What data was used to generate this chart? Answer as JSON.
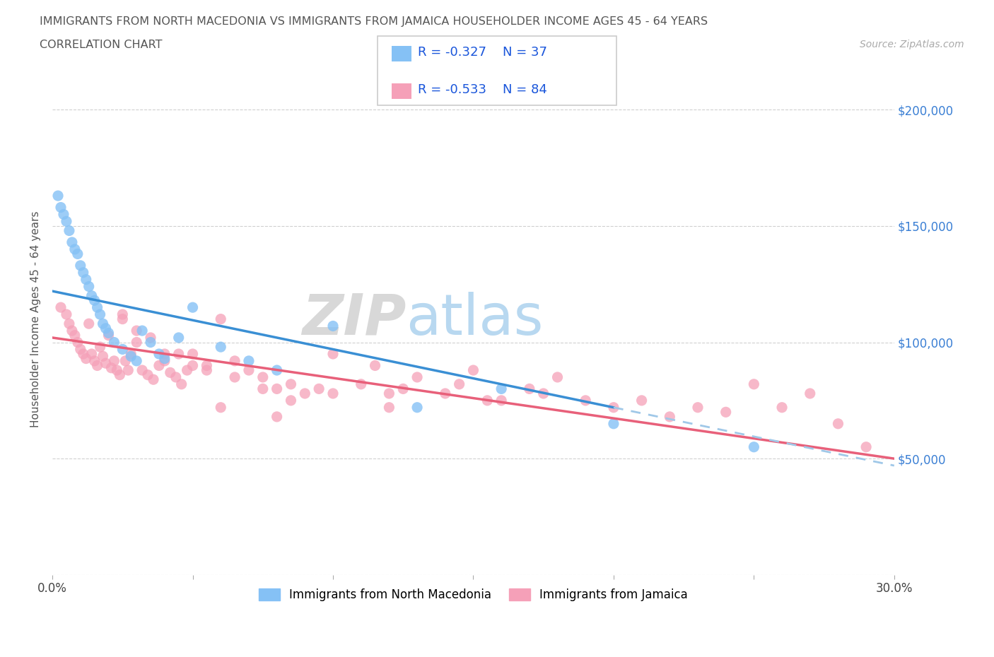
{
  "title_line1": "IMMIGRANTS FROM NORTH MACEDONIA VS IMMIGRANTS FROM JAMAICA HOUSEHOLDER INCOME AGES 45 - 64 YEARS",
  "title_line2": "CORRELATION CHART",
  "source_text": "Source: ZipAtlas.com",
  "watermark_zip": "ZIP",
  "watermark_atlas": "atlas",
  "ylabel": "Householder Income Ages 45 - 64 years",
  "xlim": [
    0.0,
    0.3
  ],
  "ylim": [
    0,
    220000
  ],
  "yticks": [
    0,
    50000,
    100000,
    150000,
    200000
  ],
  "ytick_labels": [
    "",
    "$50,000",
    "$100,000",
    "$150,000",
    "$200,000"
  ],
  "xticks": [
    0.0,
    0.05,
    0.1,
    0.15,
    0.2,
    0.25,
    0.3
  ],
  "xtick_labels": [
    "0.0%",
    "",
    "",
    "",
    "",
    "",
    "30.0%"
  ],
  "series1_label": "Immigrants from North Macedonia",
  "series1_color": "#85c1f5",
  "series1_R": -0.327,
  "series1_N": 37,
  "series2_label": "Immigrants from Jamaica",
  "series2_color": "#f5a0b8",
  "series2_R": -0.533,
  "series2_N": 84,
  "legend_R_color": "#1a56db",
  "trend1_color": "#3a8fd4",
  "trend2_color": "#e8607a",
  "dashed_color": "#a0c8e8",
  "background_color": "#ffffff",
  "trend1_x0": 0.0,
  "trend1_y0": 122000,
  "trend1_x1": 0.2,
  "trend1_y1": 72000,
  "trend1_dash_x1": 0.3,
  "trend1_dash_y1": 47000,
  "trend2_x0": 0.0,
  "trend2_y0": 102000,
  "trend2_x1": 0.3,
  "trend2_y1": 50000,
  "scatter1_x": [
    0.002,
    0.003,
    0.004,
    0.005,
    0.006,
    0.007,
    0.008,
    0.009,
    0.01,
    0.011,
    0.012,
    0.013,
    0.014,
    0.015,
    0.016,
    0.017,
    0.018,
    0.019,
    0.02,
    0.022,
    0.025,
    0.028,
    0.03,
    0.032,
    0.035,
    0.038,
    0.04,
    0.045,
    0.05,
    0.06,
    0.07,
    0.08,
    0.1,
    0.13,
    0.16,
    0.2,
    0.25
  ],
  "scatter1_y": [
    163000,
    158000,
    155000,
    152000,
    148000,
    143000,
    140000,
    138000,
    133000,
    130000,
    127000,
    124000,
    120000,
    118000,
    115000,
    112000,
    108000,
    106000,
    104000,
    100000,
    97000,
    94000,
    92000,
    105000,
    100000,
    95000,
    93000,
    102000,
    115000,
    98000,
    92000,
    88000,
    107000,
    72000,
    80000,
    65000,
    55000
  ],
  "scatter2_x": [
    0.003,
    0.005,
    0.006,
    0.007,
    0.008,
    0.009,
    0.01,
    0.011,
    0.012,
    0.013,
    0.014,
    0.015,
    0.016,
    0.017,
    0.018,
    0.019,
    0.02,
    0.021,
    0.022,
    0.023,
    0.024,
    0.025,
    0.026,
    0.027,
    0.028,
    0.03,
    0.032,
    0.034,
    0.036,
    0.038,
    0.04,
    0.042,
    0.044,
    0.046,
    0.048,
    0.05,
    0.055,
    0.06,
    0.065,
    0.07,
    0.075,
    0.08,
    0.085,
    0.09,
    0.095,
    0.1,
    0.11,
    0.115,
    0.12,
    0.125,
    0.13,
    0.14,
    0.145,
    0.15,
    0.155,
    0.16,
    0.17,
    0.175,
    0.18,
    0.19,
    0.2,
    0.21,
    0.22,
    0.23,
    0.24,
    0.25,
    0.26,
    0.27,
    0.28,
    0.29,
    0.06,
    0.08,
    0.1,
    0.12,
    0.04,
    0.05,
    0.03,
    0.025,
    0.035,
    0.045,
    0.055,
    0.065,
    0.075,
    0.085
  ],
  "scatter2_y": [
    115000,
    112000,
    108000,
    105000,
    103000,
    100000,
    97000,
    95000,
    93000,
    108000,
    95000,
    92000,
    90000,
    98000,
    94000,
    91000,
    103000,
    89000,
    92000,
    88000,
    86000,
    110000,
    92000,
    88000,
    95000,
    100000,
    88000,
    86000,
    84000,
    90000,
    92000,
    87000,
    85000,
    82000,
    88000,
    95000,
    88000,
    110000,
    92000,
    88000,
    85000,
    80000,
    82000,
    78000,
    80000,
    95000,
    82000,
    90000,
    78000,
    80000,
    85000,
    78000,
    82000,
    88000,
    75000,
    75000,
    80000,
    78000,
    85000,
    75000,
    72000,
    75000,
    68000,
    72000,
    70000,
    82000,
    72000,
    78000,
    65000,
    55000,
    72000,
    68000,
    78000,
    72000,
    95000,
    90000,
    105000,
    112000,
    102000,
    95000,
    90000,
    85000,
    80000,
    75000
  ]
}
